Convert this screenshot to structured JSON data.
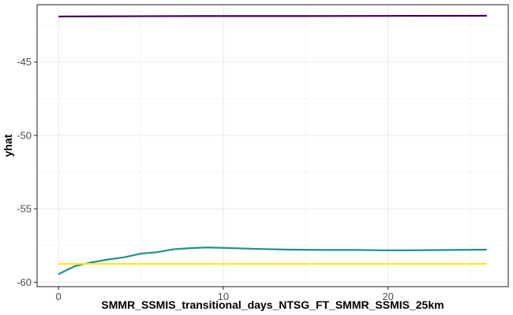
{
  "chart_data": {
    "type": "line",
    "title": "",
    "xlabel": "SMMR_SSMIS_transitional_days_NTSG_FT_SMMR_SSMIS_25km",
    "ylabel": "yhat",
    "xlim": [
      -1.3,
      27.3
    ],
    "ylim": [
      -60.3,
      -41.1
    ],
    "x_ticks": [
      0,
      10,
      20
    ],
    "y_ticks": [
      -60,
      -55,
      -50,
      -45
    ],
    "grid": true,
    "legend": "none",
    "series": [
      {
        "color": "#440154",
        "x": [
          0,
          5,
          10,
          15,
          20,
          26
        ],
        "y": [
          -41.9,
          -41.88,
          -41.87,
          -41.87,
          -41.86,
          -41.85
        ]
      },
      {
        "color": "#21908C",
        "x": [
          0,
          1,
          2,
          3,
          4,
          5,
          6,
          7,
          8,
          9,
          10,
          12,
          14,
          16,
          18,
          20,
          22,
          24,
          26
        ],
        "y": [
          -59.45,
          -58.9,
          -58.65,
          -58.45,
          -58.3,
          -58.05,
          -57.95,
          -57.75,
          -57.68,
          -57.63,
          -57.66,
          -57.73,
          -57.78,
          -57.8,
          -57.8,
          -57.83,
          -57.82,
          -57.8,
          -57.78
        ]
      },
      {
        "color": "#FDE725",
        "x": [
          0,
          26
        ],
        "y": [
          -58.75,
          -58.75
        ]
      }
    ]
  }
}
